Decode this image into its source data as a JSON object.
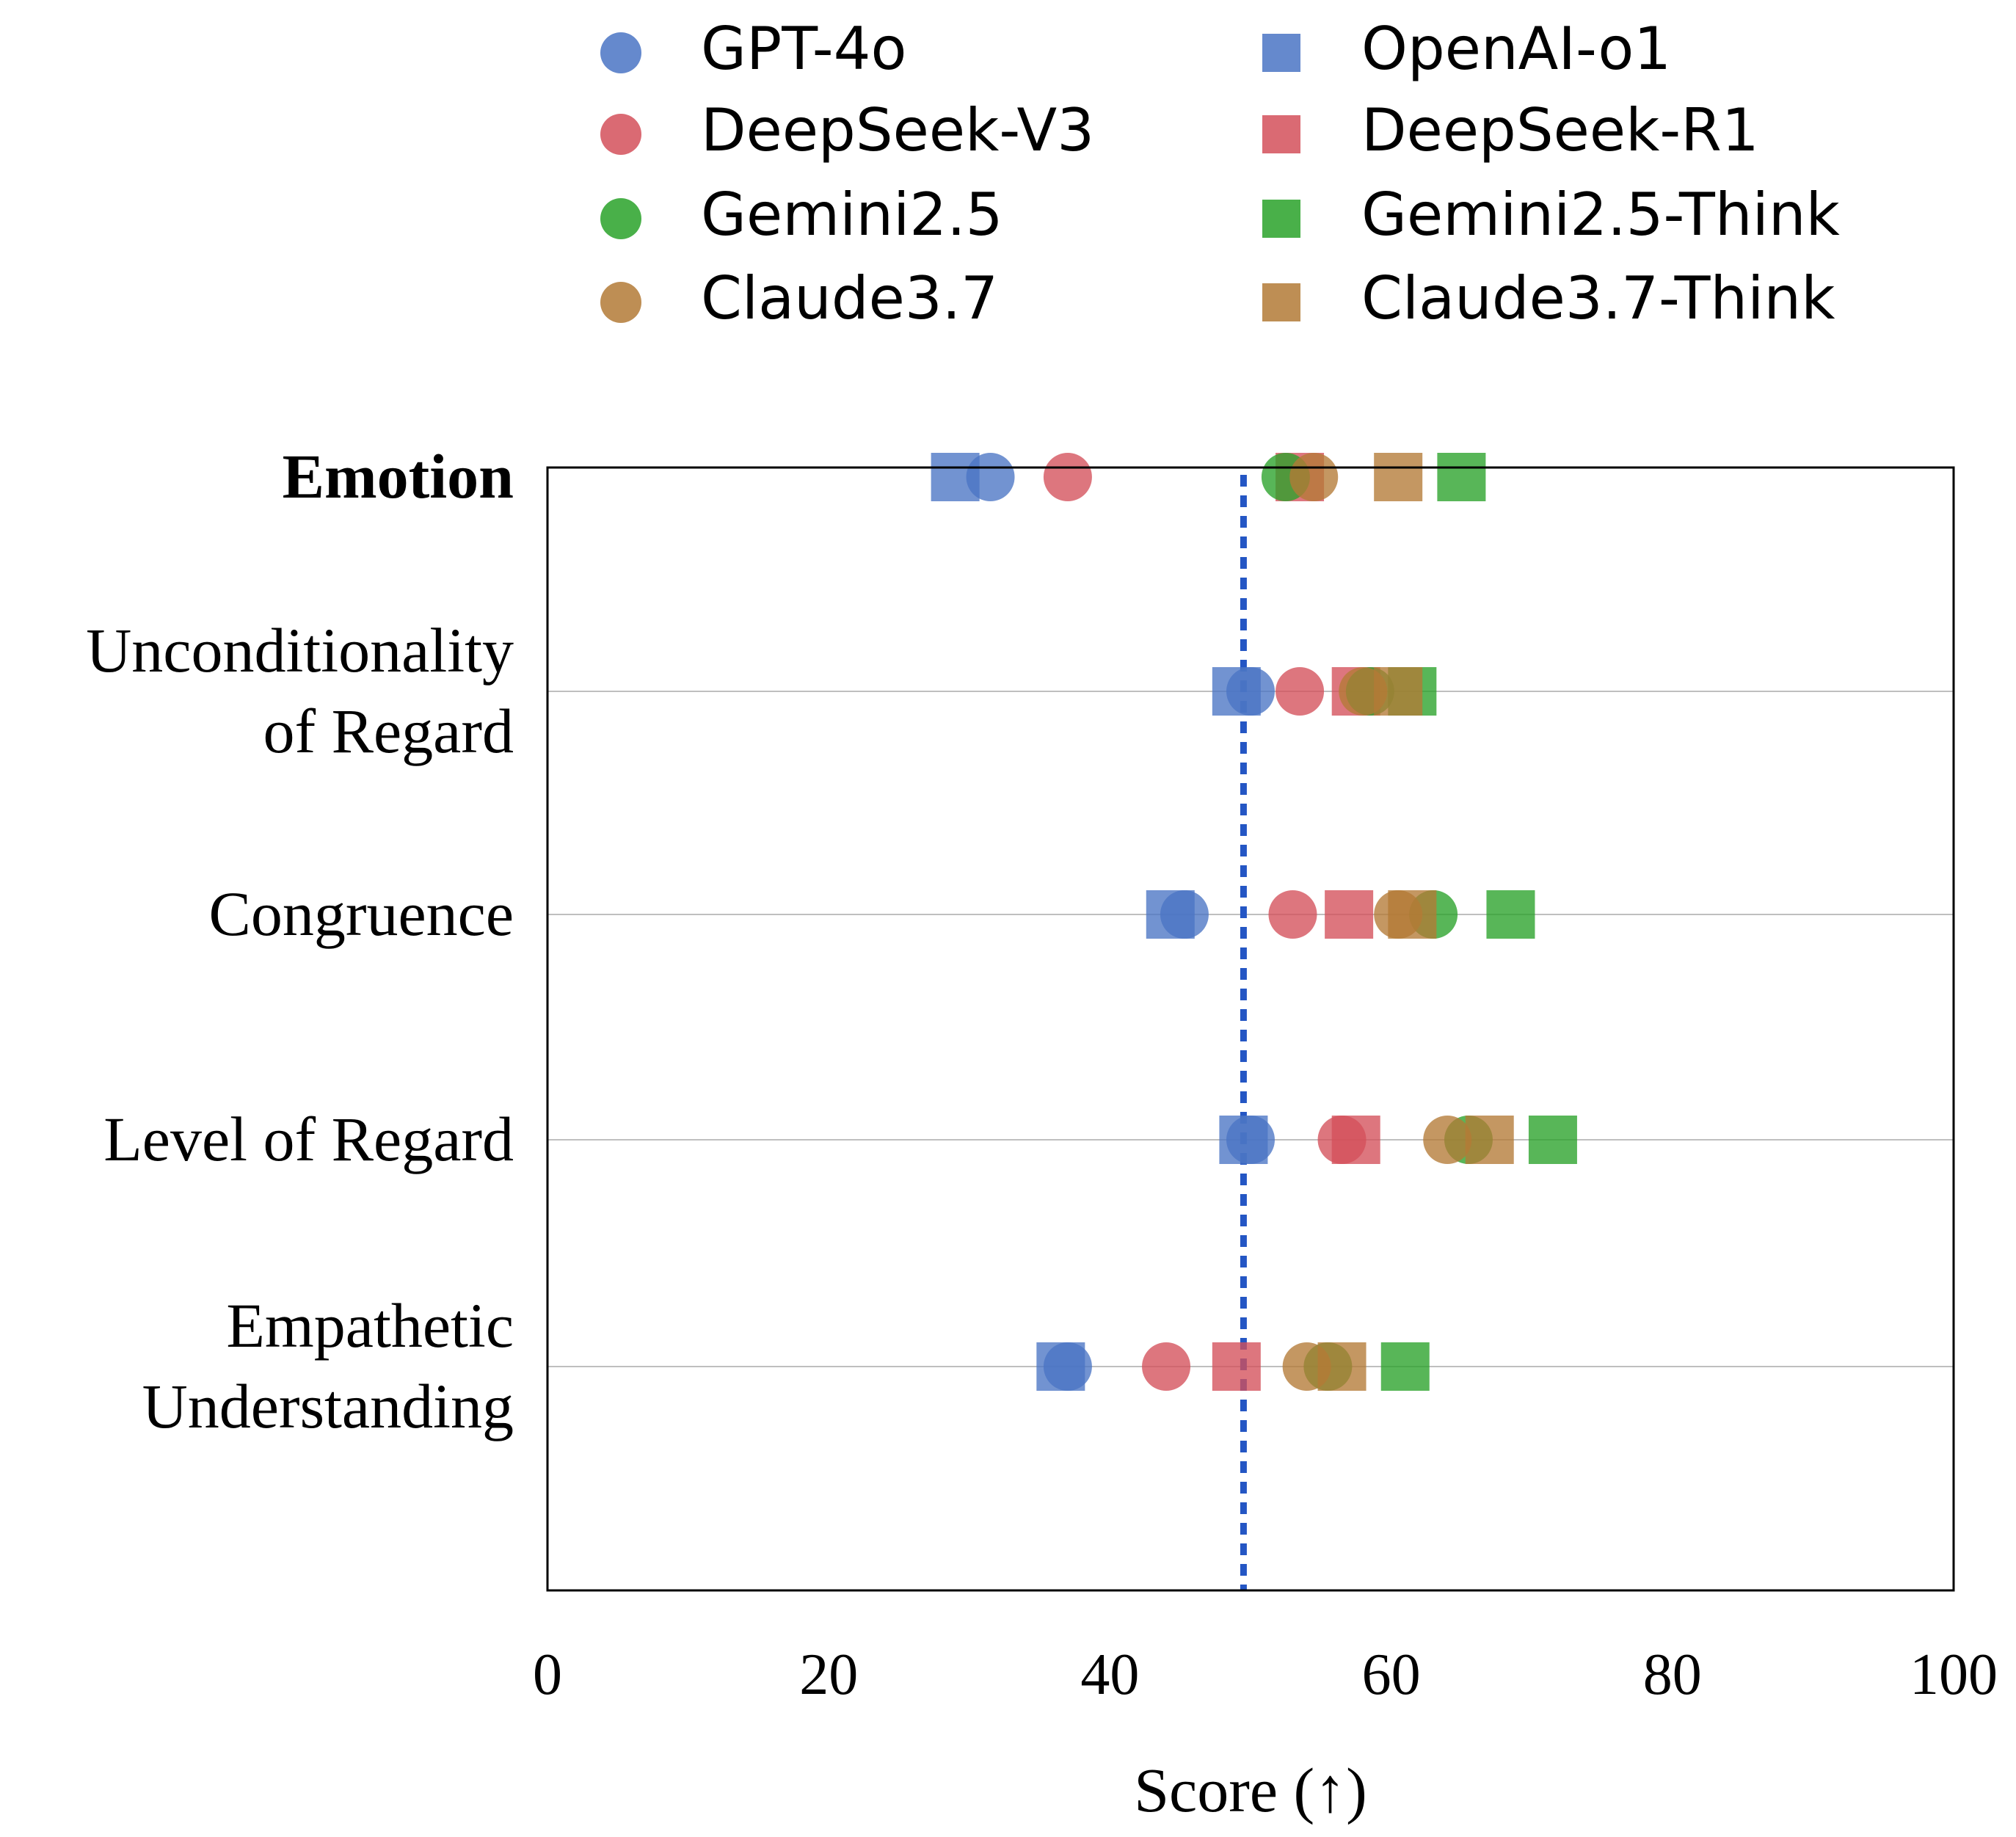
{
  "chart_data": {
    "type": "scatter",
    "orientation": "horizontal",
    "xlabel": "Score (↑)",
    "xlim": [
      0,
      100
    ],
    "xticks": [
      "0",
      "20",
      "40",
      "60",
      "80",
      "100"
    ],
    "reference_line": {
      "x": 49.5,
      "style": "dotted",
      "color": "#2456c4"
    },
    "grid": "horizontal category lines",
    "legend_position": "top",
    "categories": [
      {
        "label_lines": [
          "Emotion"
        ],
        "bold": true
      },
      {
        "label_lines": [
          "Unconditionality",
          "of Regard"
        ],
        "bold": false
      },
      {
        "label_lines": [
          "Congruence"
        ],
        "bold": false
      },
      {
        "label_lines": [
          "Level of Regard"
        ],
        "bold": false
      },
      {
        "label_lines": [
          "Empathetic",
          "Understanding"
        ],
        "bold": false
      }
    ],
    "series": [
      {
        "name": "GPT-4o",
        "marker": "circle",
        "color": "#4a74c4",
        "values": [
          31.5,
          50.0,
          45.3,
          50.0,
          37.0
        ]
      },
      {
        "name": "OpenAI-o1",
        "marker": "square",
        "color": "#4a74c4",
        "values": [
          29.0,
          49.0,
          44.3,
          49.5,
          36.5
        ]
      },
      {
        "name": "DeepSeek-V3",
        "marker": "circle",
        "color": "#d3505a",
        "values": [
          37.0,
          53.5,
          53.0,
          56.5,
          44.0
        ]
      },
      {
        "name": "DeepSeek-R1",
        "marker": "square",
        "color": "#d3505a",
        "values": [
          53.5,
          57.5,
          57.0,
          57.5,
          49.0
        ]
      },
      {
        "name": "Gemini2.5",
        "marker": "circle",
        "color": "#29a229",
        "values": [
          52.5,
          58.5,
          63.0,
          65.5,
          55.5
        ]
      },
      {
        "name": "Gemini2.5-Think",
        "marker": "square",
        "color": "#29a229",
        "values": [
          65.0,
          61.5,
          68.5,
          71.5,
          61.0
        ]
      },
      {
        "name": "Claude3.7",
        "marker": "circle",
        "color": "#b37a36",
        "values": [
          54.5,
          58.0,
          60.5,
          64.0,
          54.0
        ]
      },
      {
        "name": "Claude3.7-Think",
        "marker": "square",
        "color": "#b37a36",
        "values": [
          60.5,
          60.5,
          61.5,
          67.0,
          56.5
        ]
      }
    ]
  }
}
